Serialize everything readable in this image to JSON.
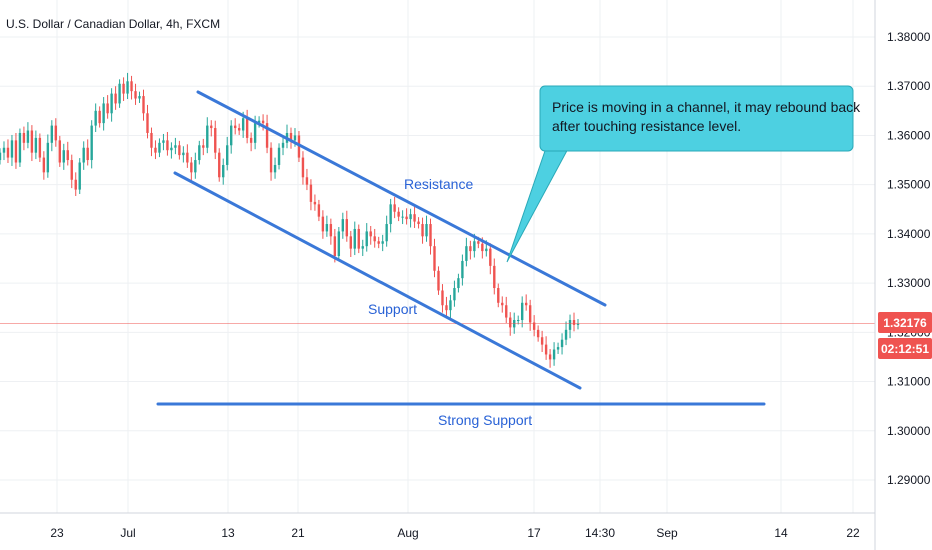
{
  "title": "U.S. Dollar / Canadian Dollar, 4h, FXCM",
  "colors": {
    "up": "#26a69a",
    "down": "#ef5350",
    "trendline": "#3a78d8",
    "callout_fill": "#4dd0e1",
    "callout_border": "#29a9b8",
    "price_line": "#ef5350",
    "badge": "#ef5350"
  },
  "price_badge": {
    "value": "1.32176",
    "countdown": "02:12:51"
  },
  "annotations": {
    "resistance": "Resistance",
    "support": "Support",
    "strong_support": "Strong Support",
    "callout_line1": "Price is moving in a channel, it may rebound back",
    "callout_line2": "after touching resistance level."
  },
  "chart_data": {
    "type": "candlestick",
    "title": "U.S. Dollar / Canadian Dollar, 4h, FXCM",
    "ylim": [
      1.285,
      1.385
    ],
    "y_ticks": [
      "1.38000",
      "1.37000",
      "1.36000",
      "1.35000",
      "1.34000",
      "1.33000",
      "1.32000",
      "1.31000",
      "1.30000",
      "1.29000"
    ],
    "x_ticks": [
      "23",
      "Jul",
      "13",
      "21",
      "Aug",
      "17",
      "14:30",
      "Sep",
      "14",
      "22"
    ],
    "series": [
      {
        "values": [
          1.3565,
          1.3575,
          1.3555,
          1.359,
          1.3545,
          1.3605,
          1.3585,
          1.361,
          1.3565,
          1.3595,
          1.3555,
          1.3525,
          1.3585,
          1.362,
          1.359,
          1.3545,
          1.357,
          1.355,
          1.351,
          1.349,
          1.3545,
          1.3575,
          1.355,
          1.362,
          1.365,
          1.3625,
          1.3665,
          1.3645,
          1.3685,
          1.3665,
          1.3705,
          1.3685,
          1.371,
          1.369,
          1.3675,
          1.368,
          1.3645,
          1.3605,
          1.3575,
          1.3565,
          1.3585,
          1.359,
          1.357,
          1.3575,
          1.358,
          1.356,
          1.3565,
          1.3545,
          1.3525,
          1.355,
          1.358,
          1.3575,
          1.362,
          1.3615,
          1.3565,
          1.3515,
          1.354,
          1.358,
          1.362,
          1.3615,
          1.361,
          1.3635,
          1.3595,
          1.3585,
          1.3625,
          1.363,
          1.3625,
          1.3575,
          1.3525,
          1.354,
          1.3575,
          1.3585,
          1.3605,
          1.359,
          1.36,
          1.3555,
          1.3515,
          1.35,
          1.3465,
          1.346,
          1.3435,
          1.3405,
          1.342,
          1.3395,
          1.3355,
          1.3405,
          1.343,
          1.3395,
          1.337,
          1.341,
          1.337,
          1.3375,
          1.3405,
          1.3395,
          1.3385,
          1.338,
          1.3385,
          1.342,
          1.346,
          1.3445,
          1.3435,
          1.3435,
          1.343,
          1.344,
          1.3425,
          1.342,
          1.3395,
          1.342,
          1.3375,
          1.3325,
          1.3285,
          1.3255,
          1.3245,
          1.3265,
          1.329,
          1.331,
          1.3345,
          1.3375,
          1.3365,
          1.3385,
          1.338,
          1.3365,
          1.337,
          1.3335,
          1.329,
          1.326,
          1.3255,
          1.323,
          1.321,
          1.3225,
          1.3225,
          1.326,
          1.3255,
          1.322,
          1.3205,
          1.319,
          1.3175,
          1.3155,
          1.3145,
          1.3165,
          1.317,
          1.3185,
          1.3205,
          1.3225,
          1.3215,
          1.3218
        ]
      }
    ]
  }
}
